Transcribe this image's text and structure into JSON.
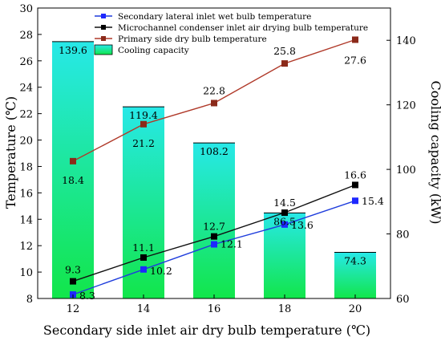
{
  "chart_data": {
    "type": "bar+line",
    "x": [
      12,
      14,
      16,
      18,
      20
    ],
    "xlabel": "Secondary side inlet air dry bulb temperature (℃)",
    "ylabel": "Temperature (℃)",
    "y2label": "Cooling capacity (kW)",
    "ylim": [
      8,
      30
    ],
    "y2lim": [
      60,
      150
    ],
    "yticks": [
      8,
      10,
      12,
      14,
      16,
      18,
      20,
      22,
      24,
      26,
      28,
      30
    ],
    "y2ticks": [
      60,
      80,
      100,
      120,
      140
    ],
    "grid": false,
    "legend_position": "top",
    "bars": {
      "name": "Cooling capacity",
      "axis": "right",
      "values": [
        139.6,
        119.4,
        108.2,
        86.5,
        74.3
      ],
      "labels": [
        "139.6",
        "119.4",
        "108.2",
        "86.5",
        "74.3"
      ],
      "color_top": "#27e8e8",
      "color_bottom": "#12e64a"
    },
    "series": [
      {
        "name": "Secondary lateral inlet wet bulb temperature",
        "axis": "left",
        "color": "#1e3cdc",
        "marker_color": "#1e28ff",
        "values": [
          8.3,
          10.2,
          12.1,
          13.6,
          15.4
        ],
        "labels": [
          "8.3",
          "10.2",
          "12.1",
          "13.6",
          "15.4"
        ]
      },
      {
        "name": "Microchannel condenser inlet air drying bulb temperature",
        "axis": "left",
        "color": "#111111",
        "marker_color": "#000000",
        "values": [
          9.3,
          11.1,
          12.7,
          14.5,
          16.6
        ],
        "labels": [
          "9.3",
          "11.1",
          "12.7",
          "14.5",
          "16.6"
        ]
      },
      {
        "name": "Primary side dry bulb temperature",
        "axis": "left",
        "color": "#b03a2a",
        "marker_color": "#8b2a1a",
        "values": [
          18.4,
          21.2,
          22.8,
          25.8,
          27.6
        ],
        "labels": [
          "18.4",
          "21.2",
          "22.8",
          "25.8",
          "27.6"
        ]
      }
    ]
  }
}
